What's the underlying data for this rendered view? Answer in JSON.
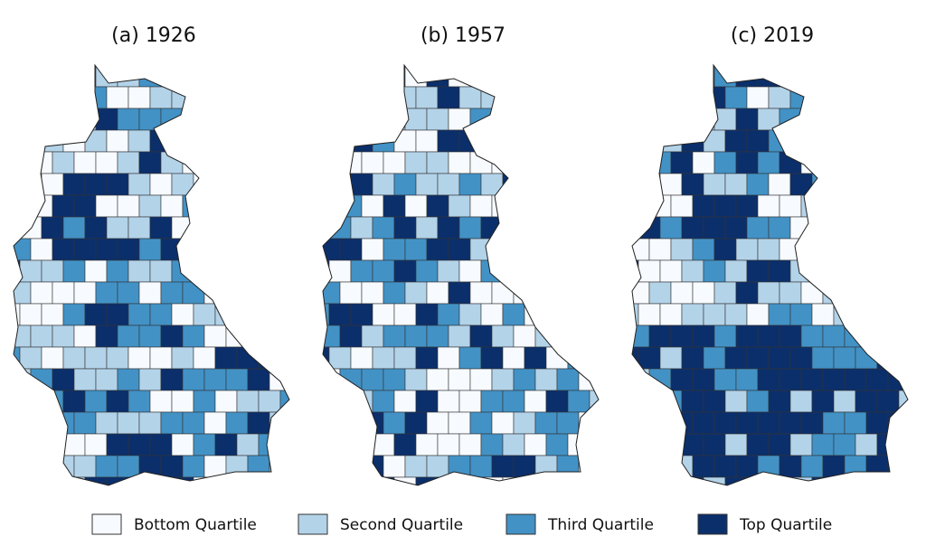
{
  "panels": [
    {
      "title": "(a) 1926"
    },
    {
      "title": "(b) 1957"
    },
    {
      "title": "(c) 2019"
    }
  ],
  "legend": [
    {
      "label": "Bottom Quartile",
      "color": "#f7fbff"
    },
    {
      "label": "Second Quartile",
      "color": "#b3d3e9"
    },
    {
      "label": "Third Quartile",
      "color": "#4292c6"
    },
    {
      "label": "Top Quartile",
      "color": "#0b2f6b"
    }
  ]
}
